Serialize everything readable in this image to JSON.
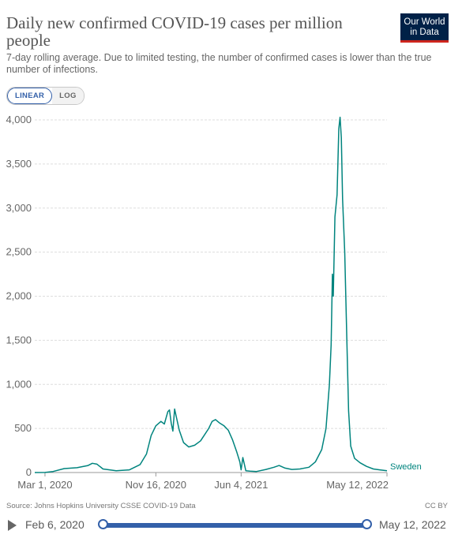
{
  "header": {
    "title": "Daily new confirmed COVID-19 cases per million people",
    "subtitle": "7-day rolling average. Due to limited testing, the number of confirmed cases is lower than the true number of infections.",
    "logo_line1": "Our World",
    "logo_line2": "in Data"
  },
  "controls": {
    "linear_label": "LINEAR",
    "log_label": "LOG",
    "active_scale": "linear"
  },
  "footer": {
    "source": "Source: Johns Hopkins University CSSE COVID-19 Data",
    "license": "CC BY"
  },
  "timeline": {
    "start_label": "Feb 6, 2020",
    "end_label": "May 12, 2022",
    "icon": "play-icon"
  },
  "colors": {
    "series": "#00847e",
    "accent": "#3360a9",
    "logo_bg": "#002147",
    "logo_bar": "#ce261e"
  },
  "chart_data": {
    "type": "line",
    "title": "Daily new confirmed COVID-19 cases per million people",
    "xlabel": "",
    "ylabel": "",
    "ylim": [
      0,
      4000
    ],
    "y_ticks": [
      "0",
      "500",
      "1,000",
      "1,500",
      "2,000",
      "2,500",
      "3,000",
      "3,500",
      "4,000"
    ],
    "y_tick_values": [
      0,
      500,
      1000,
      1500,
      2000,
      2500,
      3000,
      3500,
      4000
    ],
    "x_ticks": [
      "Mar 1, 2020",
      "Nov 16, 2020",
      "Jun 4, 2021",
      "May 12, 2022"
    ],
    "x_tick_dates": [
      "2020-03-01",
      "2020-11-16",
      "2021-06-04",
      "2022-05-12"
    ],
    "x_range": [
      "2020-02-06",
      "2022-05-12"
    ],
    "grid": true,
    "series": [
      {
        "name": "Sweden",
        "points": [
          [
            "2020-02-06",
            0
          ],
          [
            "2020-03-01",
            1
          ],
          [
            "2020-03-20",
            12
          ],
          [
            "2020-04-15",
            45
          ],
          [
            "2020-05-15",
            55
          ],
          [
            "2020-06-10",
            80
          ],
          [
            "2020-06-20",
            105
          ],
          [
            "2020-07-01",
            95
          ],
          [
            "2020-07-15",
            40
          ],
          [
            "2020-08-15",
            20
          ],
          [
            "2020-09-15",
            30
          ],
          [
            "2020-10-10",
            90
          ],
          [
            "2020-10-25",
            210
          ],
          [
            "2020-11-05",
            420
          ],
          [
            "2020-11-16",
            530
          ],
          [
            "2020-11-28",
            580
          ],
          [
            "2020-12-06",
            550
          ],
          [
            "2020-12-14",
            690
          ],
          [
            "2020-12-18",
            710
          ],
          [
            "2020-12-22",
            560
          ],
          [
            "2020-12-26",
            470
          ],
          [
            "2020-12-30",
            720
          ],
          [
            "2021-01-03",
            630
          ],
          [
            "2021-01-10",
            480
          ],
          [
            "2021-01-20",
            340
          ],
          [
            "2021-02-01",
            290
          ],
          [
            "2021-02-15",
            310
          ],
          [
            "2021-03-01",
            360
          ],
          [
            "2021-03-20",
            500
          ],
          [
            "2021-03-28",
            580
          ],
          [
            "2021-04-05",
            600
          ],
          [
            "2021-04-15",
            560
          ],
          [
            "2021-04-25",
            530
          ],
          [
            "2021-05-05",
            480
          ],
          [
            "2021-05-15",
            370
          ],
          [
            "2021-05-25",
            230
          ],
          [
            "2021-06-01",
            120
          ],
          [
            "2021-06-04",
            30
          ],
          [
            "2021-06-08",
            170
          ],
          [
            "2021-06-15",
            20
          ],
          [
            "2021-06-25",
            15
          ],
          [
            "2021-07-10",
            12
          ],
          [
            "2021-08-01",
            35
          ],
          [
            "2021-08-20",
            60
          ],
          [
            "2021-09-01",
            80
          ],
          [
            "2021-09-15",
            50
          ],
          [
            "2021-10-01",
            35
          ],
          [
            "2021-10-20",
            40
          ],
          [
            "2021-11-10",
            60
          ],
          [
            "2021-11-25",
            120
          ],
          [
            "2021-12-10",
            260
          ],
          [
            "2021-12-20",
            500
          ],
          [
            "2021-12-28",
            1000
          ],
          [
            "2022-01-01",
            1450
          ],
          [
            "2022-01-04",
            2250
          ],
          [
            "2022-01-06",
            2000
          ],
          [
            "2022-01-10",
            2900
          ],
          [
            "2022-01-15",
            3150
          ],
          [
            "2022-01-19",
            3900
          ],
          [
            "2022-01-22",
            4030
          ],
          [
            "2022-01-25",
            3800
          ],
          [
            "2022-01-28",
            3100
          ],
          [
            "2022-02-02",
            2500
          ],
          [
            "2022-02-07",
            1500
          ],
          [
            "2022-02-11",
            700
          ],
          [
            "2022-02-16",
            300
          ],
          [
            "2022-02-25",
            160
          ],
          [
            "2022-03-10",
            110
          ],
          [
            "2022-03-25",
            70
          ],
          [
            "2022-04-10",
            40
          ],
          [
            "2022-04-25",
            30
          ],
          [
            "2022-05-12",
            20
          ]
        ]
      }
    ]
  }
}
